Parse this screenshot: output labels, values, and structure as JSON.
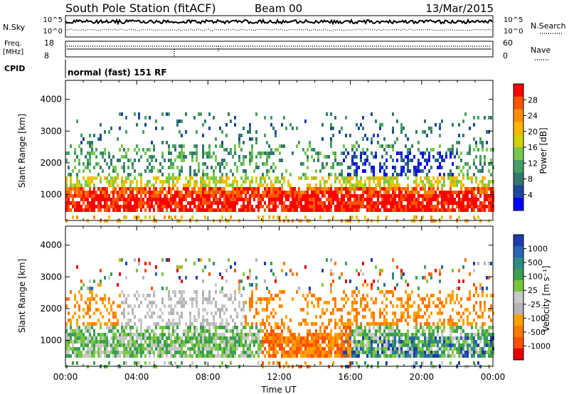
{
  "title": {
    "station": "South Pole Station (fitACF)",
    "beam": "Beam 00",
    "date": "13/Mar/2015"
  },
  "labels": {
    "nsky": "N.Sky",
    "nsearch": "N.Search",
    "freq": "Freq.",
    "mhz": "[MHz]",
    "nave": "Nave",
    "cpid": "CPID",
    "cpid_value": "normal (fast) 151 RF",
    "n_exp_label": "10^5",
    "n_zero_label": "10^0",
    "freq_ticks": [
      "18",
      "8"
    ],
    "nave_ticks": [
      "60",
      "0"
    ]
  },
  "chart_data": [
    {
      "type": "heatmap",
      "name": "power",
      "ylabel": "Slant Range [km]",
      "yticks": [
        1000,
        2000,
        3000,
        4000
      ],
      "ylim": [
        180,
        4600
      ],
      "colorbar": {
        "label": "Power [dB]",
        "ticks": [
          "28",
          "24",
          "20",
          "16",
          "12",
          "8",
          "4"
        ],
        "colors": [
          "#ff0000",
          "#ff5500",
          "#ff8c00",
          "#ffb400",
          "#d2d200",
          "#78c850",
          "#46a064",
          "#32786e",
          "#1e46a0",
          "#0000ff"
        ]
      }
    },
    {
      "type": "heatmap",
      "name": "velocity",
      "ylabel": "Slant Range [km]",
      "yticks": [
        1000,
        2000,
        3000,
        4000
      ],
      "ylim": [
        180,
        4600
      ],
      "colorbar": {
        "label": "Velocity [m s⁻¹]",
        "ticks": [
          "1000",
          "500",
          "100",
          "25",
          "-25",
          "-100",
          "-500",
          "-1000"
        ],
        "colors": [
          "#1e3caa",
          "#2a64b4",
          "#2d8c82",
          "#3ca050",
          "#78c83c",
          "#c8c8c8",
          "#b4b4b4",
          "#ffa000",
          "#ff7800",
          "#ff5000",
          "#e60000"
        ]
      }
    }
  ],
  "xaxis": {
    "label": "Time UT",
    "ticks": [
      "00:00",
      "04:00",
      "08:00",
      "12:00",
      "16:00",
      "20:00",
      "00:00"
    ],
    "range_hours": [
      0,
      24
    ]
  }
}
